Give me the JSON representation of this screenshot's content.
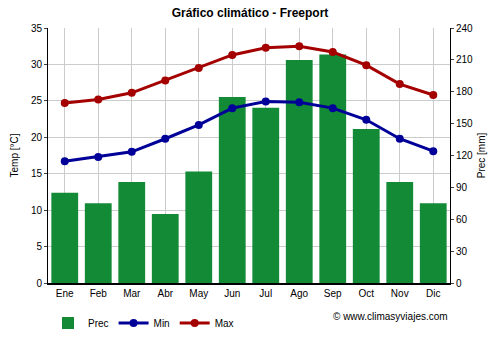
{
  "chart_data": {
    "type": "bar",
    "title": "Gráfico climático - Freeport",
    "y_label": "Temp [°C]",
    "y2_label": "Prec [mm]",
    "annotation": "© www.climasyviajes.com",
    "categories": [
      "Ene",
      "Feb",
      "Mar",
      "Abr",
      "May",
      "Jun",
      "Jul",
      "Ago",
      "Sep",
      "Oct",
      "Nov",
      "Dic"
    ],
    "series": [
      {
        "name": "Prec",
        "type": "bar",
        "axis": "y2",
        "color": "#138a36",
        "values": [
          85,
          75,
          95,
          65,
          105,
          175,
          165,
          210,
          215,
          145,
          95,
          75
        ]
      },
      {
        "name": "Min",
        "type": "line",
        "color": "#000099",
        "marker": "circle",
        "values": [
          16.7,
          17.3,
          18.0,
          19.8,
          21.7,
          24.0,
          24.9,
          24.8,
          24.0,
          22.4,
          19.8,
          18.1
        ]
      },
      {
        "name": "Max",
        "type": "line",
        "color": "#a50000",
        "marker": "circle",
        "values": [
          24.7,
          25.2,
          26.1,
          27.8,
          29.5,
          31.3,
          32.3,
          32.5,
          31.7,
          29.9,
          27.3,
          25.8
        ]
      }
    ],
    "ylim": [
      0,
      35
    ],
    "yticks": [
      0,
      5,
      10,
      15,
      20,
      25,
      30,
      35
    ],
    "y2lim": [
      0,
      240
    ],
    "y2ticks": [
      0,
      30,
      60,
      90,
      120,
      150,
      180,
      210,
      240
    ],
    "grid": true,
    "legend": "bottom"
  }
}
